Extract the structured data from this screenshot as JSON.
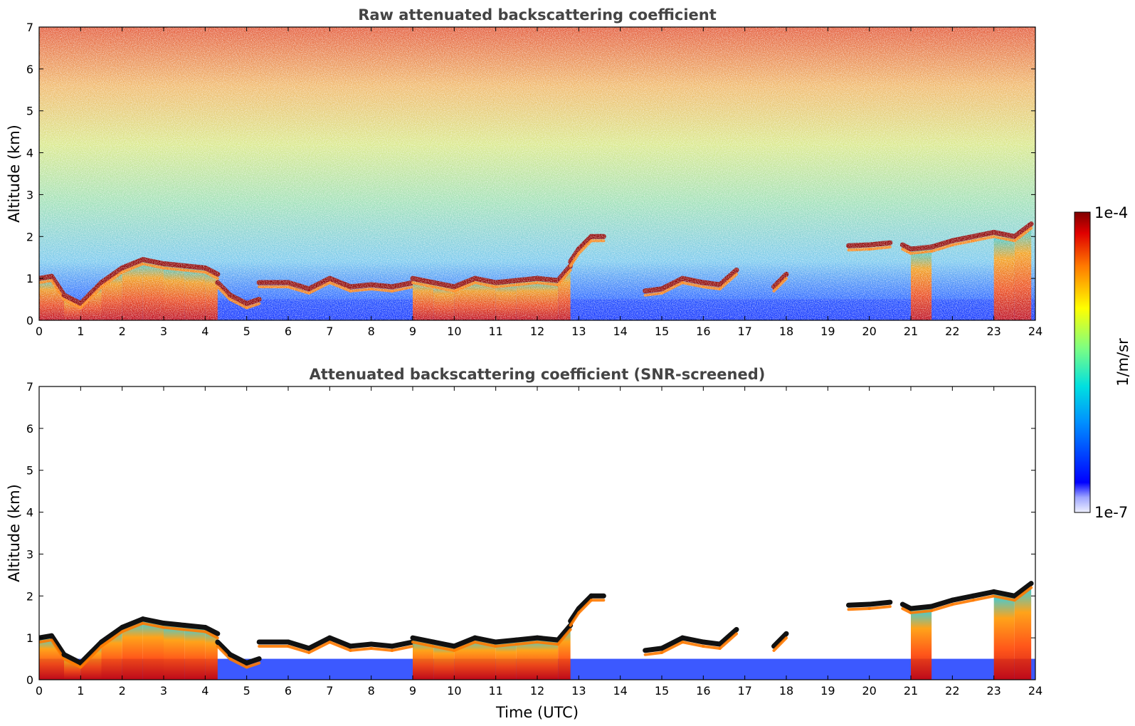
{
  "chart_data": [
    {
      "type": "heatmap",
      "title": "Raw attenuated backscattering coefficient",
      "xlabel": "",
      "ylabel": "Altitude (km)",
      "xlim": [
        0,
        24
      ],
      "ylim": [
        0,
        7
      ],
      "x_ticks": [
        "0",
        "1",
        "2",
        "3",
        "4",
        "5",
        "6",
        "7",
        "8",
        "9",
        "10",
        "11",
        "12",
        "13",
        "14",
        "15",
        "16",
        "17",
        "18",
        "19",
        "20",
        "21",
        "22",
        "23",
        "24"
      ],
      "y_ticks": [
        "0",
        "1",
        "2",
        "3",
        "4",
        "5",
        "6",
        "7"
      ],
      "screened": false,
      "cloud_layers": [
        {
          "x": [
            0.0,
            0.3,
            0.6,
            1.0,
            1.5,
            2.0,
            2.5,
            3.0,
            3.5,
            4.0,
            4.3
          ],
          "y": [
            1.0,
            1.05,
            0.6,
            0.4,
            0.9,
            1.25,
            1.45,
            1.35,
            1.3,
            1.25,
            1.1
          ]
        },
        {
          "x": [
            4.3,
            4.6,
            5.0,
            5.3
          ],
          "y": [
            0.9,
            0.6,
            0.4,
            0.5
          ]
        },
        {
          "x": [
            5.3,
            6.0,
            6.5,
            7.0,
            7.5,
            8.0,
            8.5,
            9.0
          ],
          "y": [
            0.9,
            0.9,
            0.75,
            1.0,
            0.8,
            0.85,
            0.8,
            0.9
          ]
        },
        {
          "x": [
            9.0,
            9.5,
            10.0,
            10.5,
            11.0,
            11.5,
            12.0,
            12.5,
            12.8
          ],
          "y": [
            1.0,
            0.9,
            0.8,
            1.0,
            0.9,
            0.95,
            1.0,
            0.95,
            1.3
          ]
        },
        {
          "x": [
            12.8,
            13.0,
            13.3,
            13.6
          ],
          "y": [
            1.4,
            1.7,
            2.0,
            2.0
          ]
        },
        {
          "x": [
            14.6,
            15.0,
            15.5,
            16.0,
            16.4,
            16.8
          ],
          "y": [
            0.7,
            0.75,
            1.0,
            0.9,
            0.85,
            1.2
          ]
        },
        {
          "x": [
            17.7,
            18.0
          ],
          "y": [
            0.8,
            1.1
          ]
        },
        {
          "x": [
            19.5,
            20.0,
            20.5
          ],
          "y": [
            1.78,
            1.8,
            1.85
          ]
        },
        {
          "x": [
            20.8,
            21.0,
            21.5,
            22.0,
            22.5,
            23.0,
            23.5,
            23.9
          ],
          "y": [
            1.8,
            1.7,
            1.75,
            1.9,
            2.0,
            2.1,
            2.0,
            2.3
          ]
        }
      ]
    },
    {
      "type": "heatmap",
      "title": "Attenuated backscattering coefficient (SNR-screened)",
      "xlabel": "Time (UTC)",
      "ylabel": "Altitude (km)",
      "xlim": [
        0,
        24
      ],
      "ylim": [
        0,
        7
      ],
      "x_ticks": [
        "0",
        "1",
        "2",
        "3",
        "4",
        "5",
        "6",
        "7",
        "8",
        "9",
        "10",
        "11",
        "12",
        "13",
        "14",
        "15",
        "16",
        "17",
        "18",
        "19",
        "20",
        "21",
        "22",
        "23",
        "24"
      ],
      "y_ticks": [
        "0",
        "1",
        "2",
        "3",
        "4",
        "5",
        "6",
        "7"
      ],
      "screened": true
    }
  ],
  "colorbar": {
    "label": "1/m/sr",
    "max_label": "1e-4",
    "min_label": "1e-7",
    "scale": "log",
    "range": [
      1e-07,
      0.0001
    ],
    "colormap": "jet"
  }
}
